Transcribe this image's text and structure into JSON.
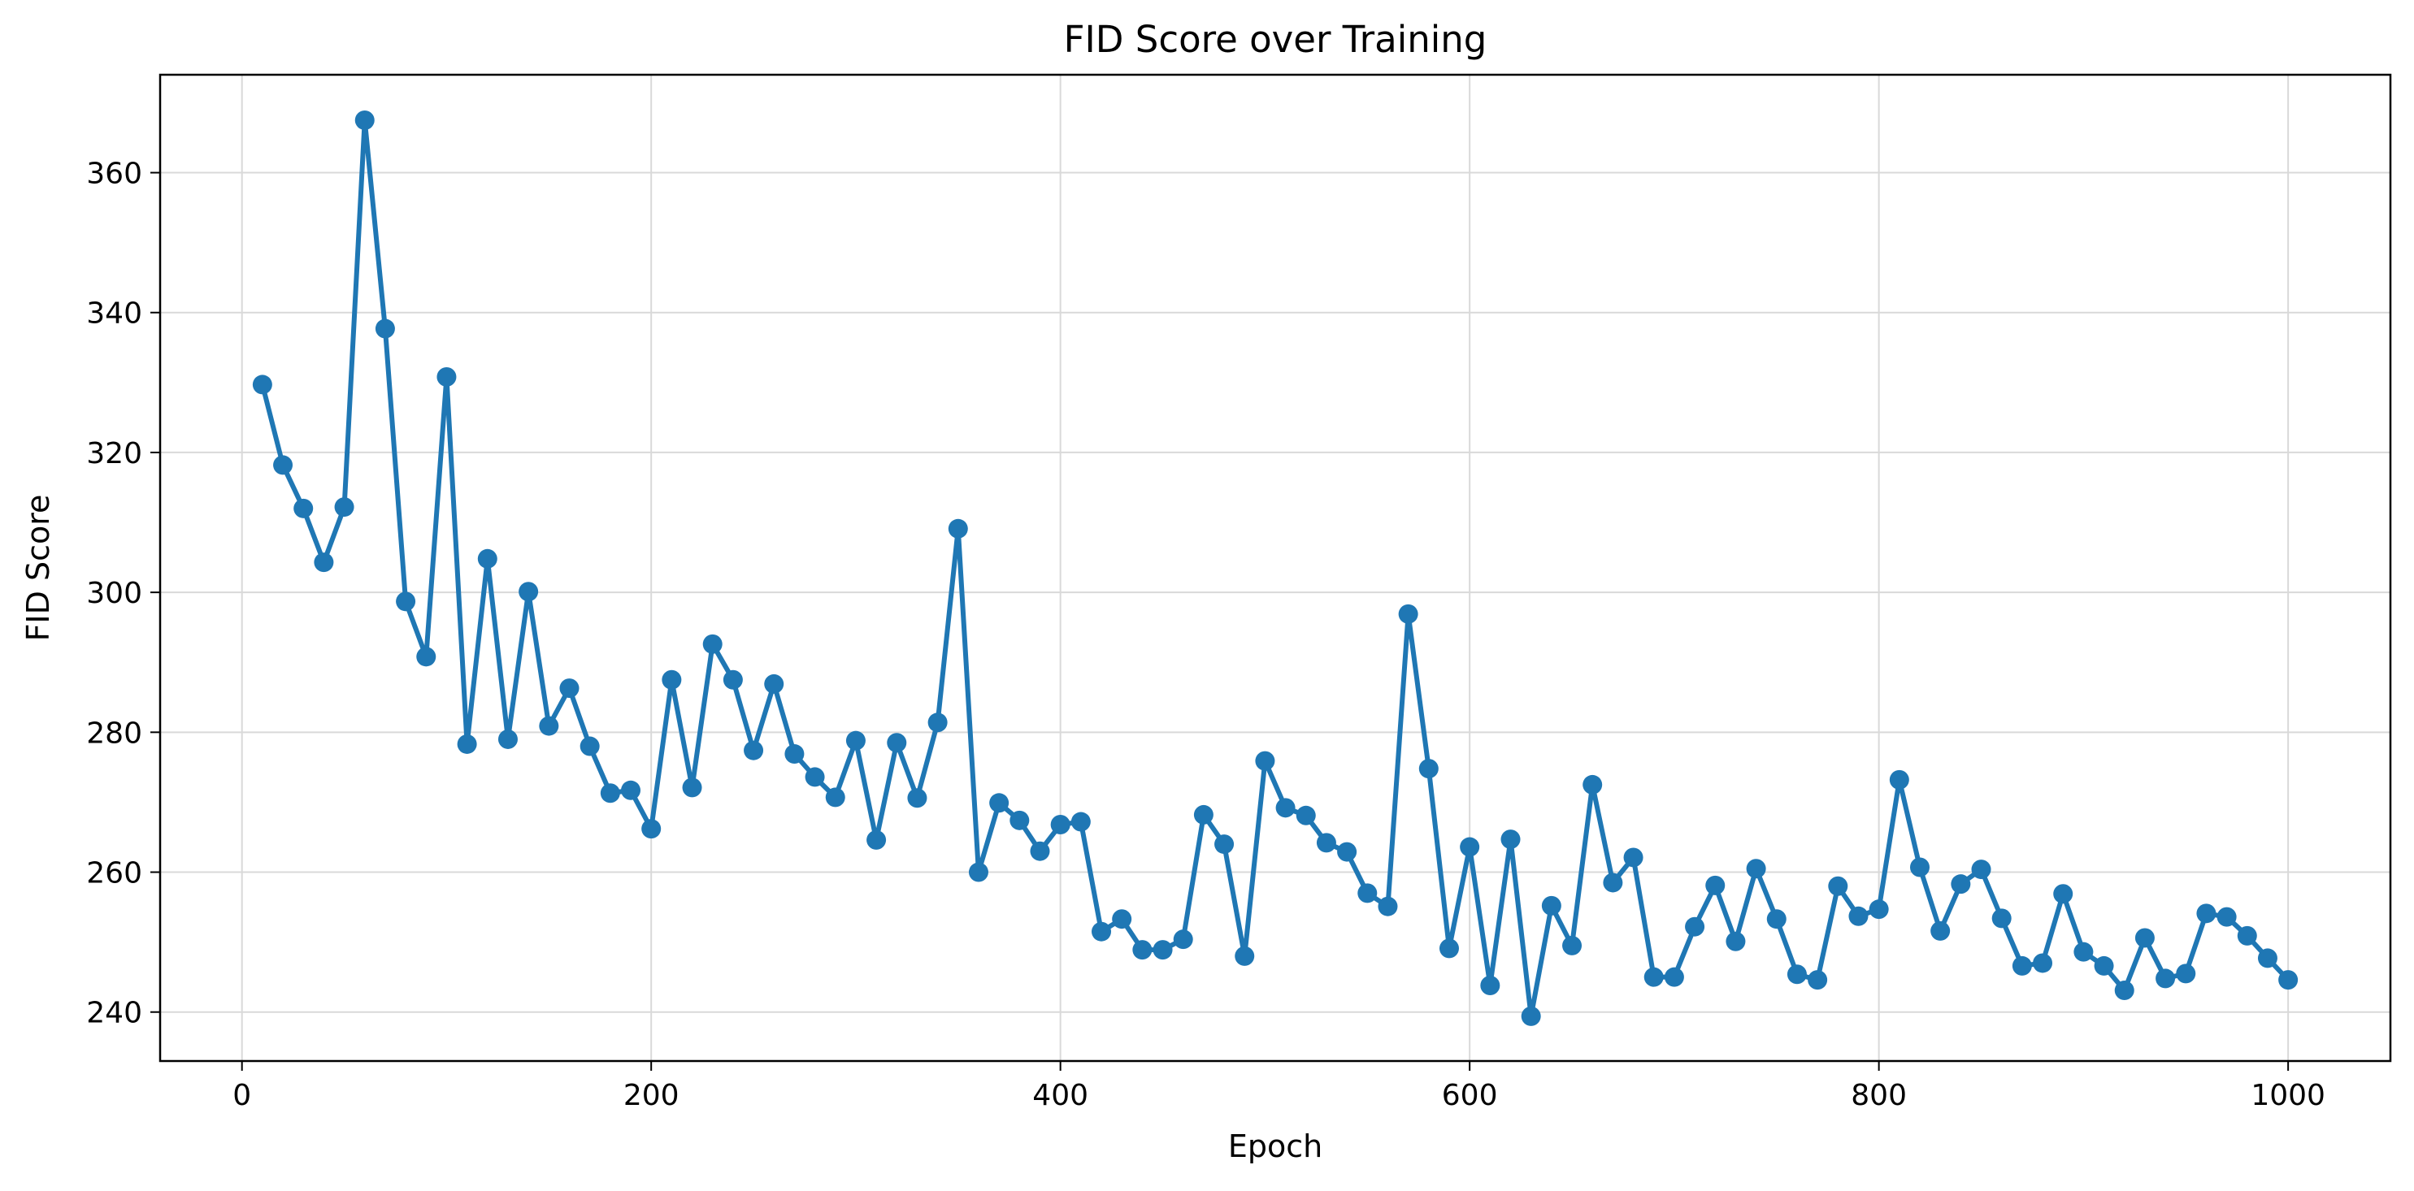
{
  "chart_data": {
    "type": "line",
    "title": "FID Score over Training",
    "xlabel": "Epoch",
    "ylabel": "FID Score",
    "xlim": [
      -40,
      1050
    ],
    "ylim": [
      233,
      374
    ],
    "x_ticks": [
      0,
      200,
      400,
      600,
      800,
      1000
    ],
    "y_ticks": [
      240,
      260,
      280,
      300,
      320,
      340,
      360
    ],
    "grid": true,
    "legend": "none",
    "marker": "circle",
    "colors": {
      "series": "#1f77b4",
      "grid": "#d9d9d9",
      "frame": "#000000"
    },
    "series": [
      {
        "x": [
          10,
          20,
          30,
          40,
          50,
          60,
          70,
          80,
          90,
          100,
          110,
          120,
          130,
          140,
          150,
          160,
          170,
          180,
          190,
          200,
          210,
          220,
          230,
          240,
          250,
          260,
          270,
          280,
          290,
          300,
          310,
          320,
          330,
          340,
          350,
          360,
          370,
          380,
          390,
          400,
          410,
          420,
          430,
          440,
          450,
          460,
          470,
          480,
          490,
          500,
          510,
          520,
          530,
          540,
          550,
          560,
          570,
          580,
          590,
          600,
          610,
          620,
          630,
          640,
          650,
          660,
          670,
          680,
          690,
          700,
          710,
          720,
          730,
          740,
          750,
          760,
          770,
          780,
          790,
          800,
          810,
          820,
          830,
          840,
          850,
          860,
          870,
          880,
          890,
          900,
          910,
          920,
          930,
          940,
          950,
          960,
          970,
          980,
          990,
          1000
        ],
        "values": [
          329.7,
          318.2,
          312.0,
          304.3,
          312.2,
          367.5,
          337.7,
          298.7,
          290.8,
          330.8,
          278.3,
          304.8,
          279.0,
          300.1,
          280.9,
          286.3,
          278.0,
          271.3,
          271.7,
          266.2,
          287.5,
          272.1,
          292.6,
          287.5,
          277.4,
          286.9,
          276.9,
          273.6,
          270.7,
          278.8,
          264.6,
          278.5,
          270.6,
          281.4,
          309.1,
          260.0,
          269.9,
          267.4,
          263.0,
          266.8,
          267.2,
          251.5,
          253.3,
          248.9,
          248.9,
          250.4,
          268.2,
          264.0,
          248.0,
          275.9,
          269.2,
          268.1,
          264.2,
          262.9,
          257.0,
          255.1,
          296.9,
          274.8,
          249.1,
          263.6,
          243.8,
          264.7,
          239.4,
          255.2,
          249.5,
          272.5,
          258.5,
          262.1,
          245.0,
          245.0,
          252.2,
          258.1,
          250.1,
          260.5,
          253.3,
          245.4,
          244.6,
          258.0,
          253.7,
          254.7,
          273.2,
          260.7,
          251.6,
          258.3,
          260.4,
          253.4,
          246.6,
          247.0,
          256.9,
          248.6,
          246.6,
          243.1,
          250.6,
          244.8,
          245.5,
          254.1,
          253.6,
          250.9,
          247.7,
          244.6
        ]
      }
    ]
  }
}
